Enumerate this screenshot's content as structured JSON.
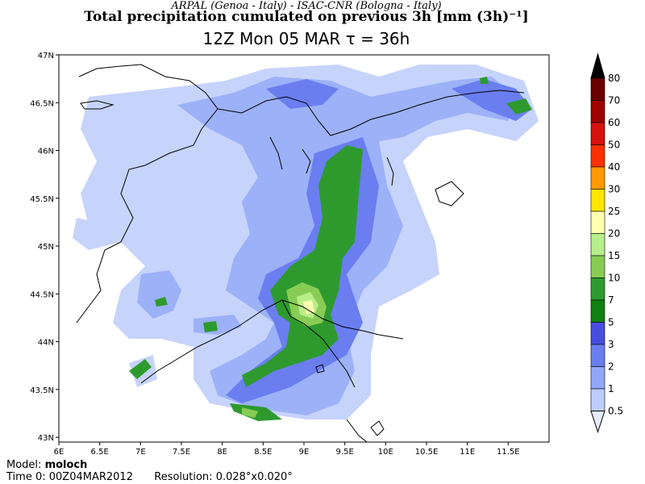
{
  "header": {
    "credit": "ARPAL (Genoa - Italy)  -  ISAC-CNR (Bologna - Italy)",
    "title": "Total precipitation cumulated on previous 3h [mm (3h)⁻¹]",
    "valid_time": "12Z Mon 05 MAR  τ = 36h"
  },
  "map": {
    "lat_labels": [
      "47N",
      "46.5N",
      "46N",
      "45.5N",
      "45N",
      "44.5N",
      "44N",
      "43.5N",
      "43N"
    ],
    "lat_values": [
      47,
      46.5,
      46,
      45.5,
      45,
      44.5,
      44,
      43.5,
      43
    ],
    "lon_labels": [
      "6E",
      "6.5E",
      "7E",
      "7.5E",
      "8E",
      "8.5E",
      "9E",
      "9.5E",
      "10E",
      "10.5E",
      "11E",
      "11.5E"
    ],
    "lon_values": [
      6,
      6.5,
      7,
      7.5,
      8,
      8.5,
      9,
      9.5,
      10,
      10.5,
      11,
      11.5
    ],
    "lon_range": [
      6,
      12
    ],
    "lat_range": [
      42.95,
      47
    ]
  },
  "colorbar": {
    "labels": [
      "80",
      "70",
      "60",
      "50",
      "40",
      "30",
      "25",
      "20",
      "15",
      "10",
      "7",
      "5",
      "3",
      "2",
      "1",
      "0.5"
    ],
    "colors": [
      "#000000",
      "#6b0000",
      "#a00000",
      "#d81010",
      "#ff3000",
      "#ff9a00",
      "#ffe600",
      "#ffffb0",
      "#b8ee8a",
      "#88cc55",
      "#2e9a2e",
      "#108010",
      "#4a4ee0",
      "#6a7ef0",
      "#90a8f8",
      "#bccdfc",
      "#e6ecff"
    ]
  },
  "footer": {
    "model_label": "Model:",
    "model_value": "moloch",
    "time_label": "Time 0:",
    "time_value": "00Z04MAR2012",
    "res_label": "Resolution:",
    "res_value": "0.028°x0.020°"
  }
}
